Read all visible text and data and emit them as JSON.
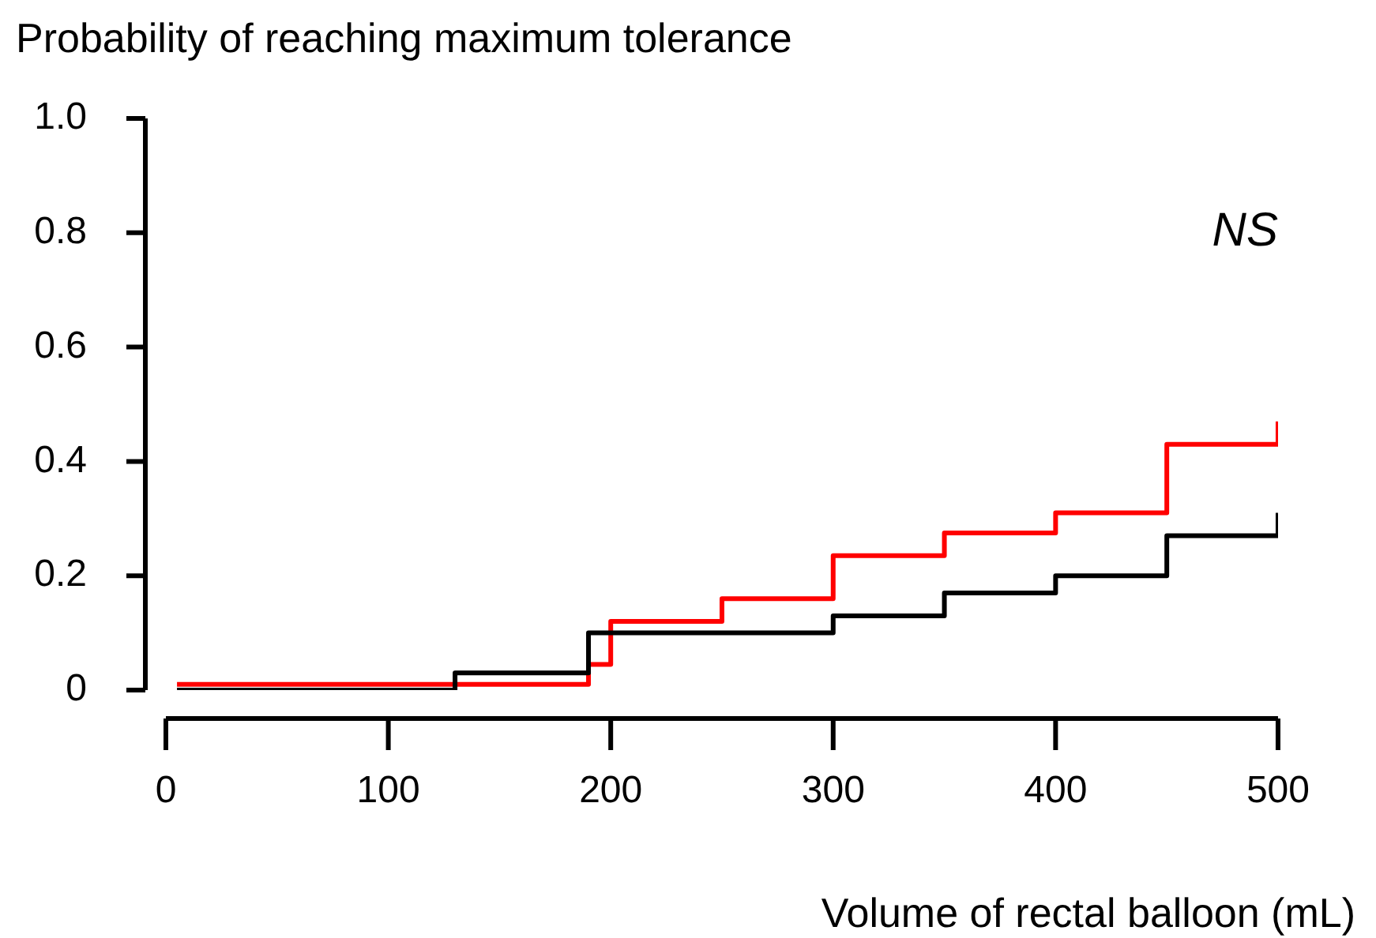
{
  "chart_data": {
    "type": "step",
    "xlabel": "Volume of rectal balloon (mL)",
    "ylabel": "Probability of reaching maximum tolerance",
    "annotations": [
      "NS"
    ],
    "series": [
      {
        "color": "#000000",
        "x": [
          5,
          130,
          190,
          300,
          350,
          400,
          450,
          500
        ],
        "values": [
          0,
          0.03,
          0.1,
          0.13,
          0.17,
          0.2,
          0.27,
          0.31
        ]
      },
      {
        "color": "#ff0000",
        "x": [
          5,
          190,
          200,
          250,
          300,
          350,
          400,
          450,
          500
        ],
        "values": [
          0.01,
          0.045,
          0.12,
          0.16,
          0.235,
          0.275,
          0.31,
          0.43,
          0.47
        ]
      }
    ],
    "xlim": [
      0,
      500
    ],
    "xticks": [
      0,
      100,
      200,
      300,
      400,
      500
    ],
    "ylim": [
      0,
      1
    ],
    "yticks": [
      0,
      {
        "value": 0.2,
        "label": "0.2"
      },
      {
        "value": 0.4,
        "label": "0.4"
      },
      {
        "value": 0.6,
        "label": "0.6"
      },
      {
        "value": 0.8,
        "label": "0.8"
      },
      {
        "value": 1,
        "label": "1.0"
      }
    ],
    "grid": false,
    "legend": false
  }
}
